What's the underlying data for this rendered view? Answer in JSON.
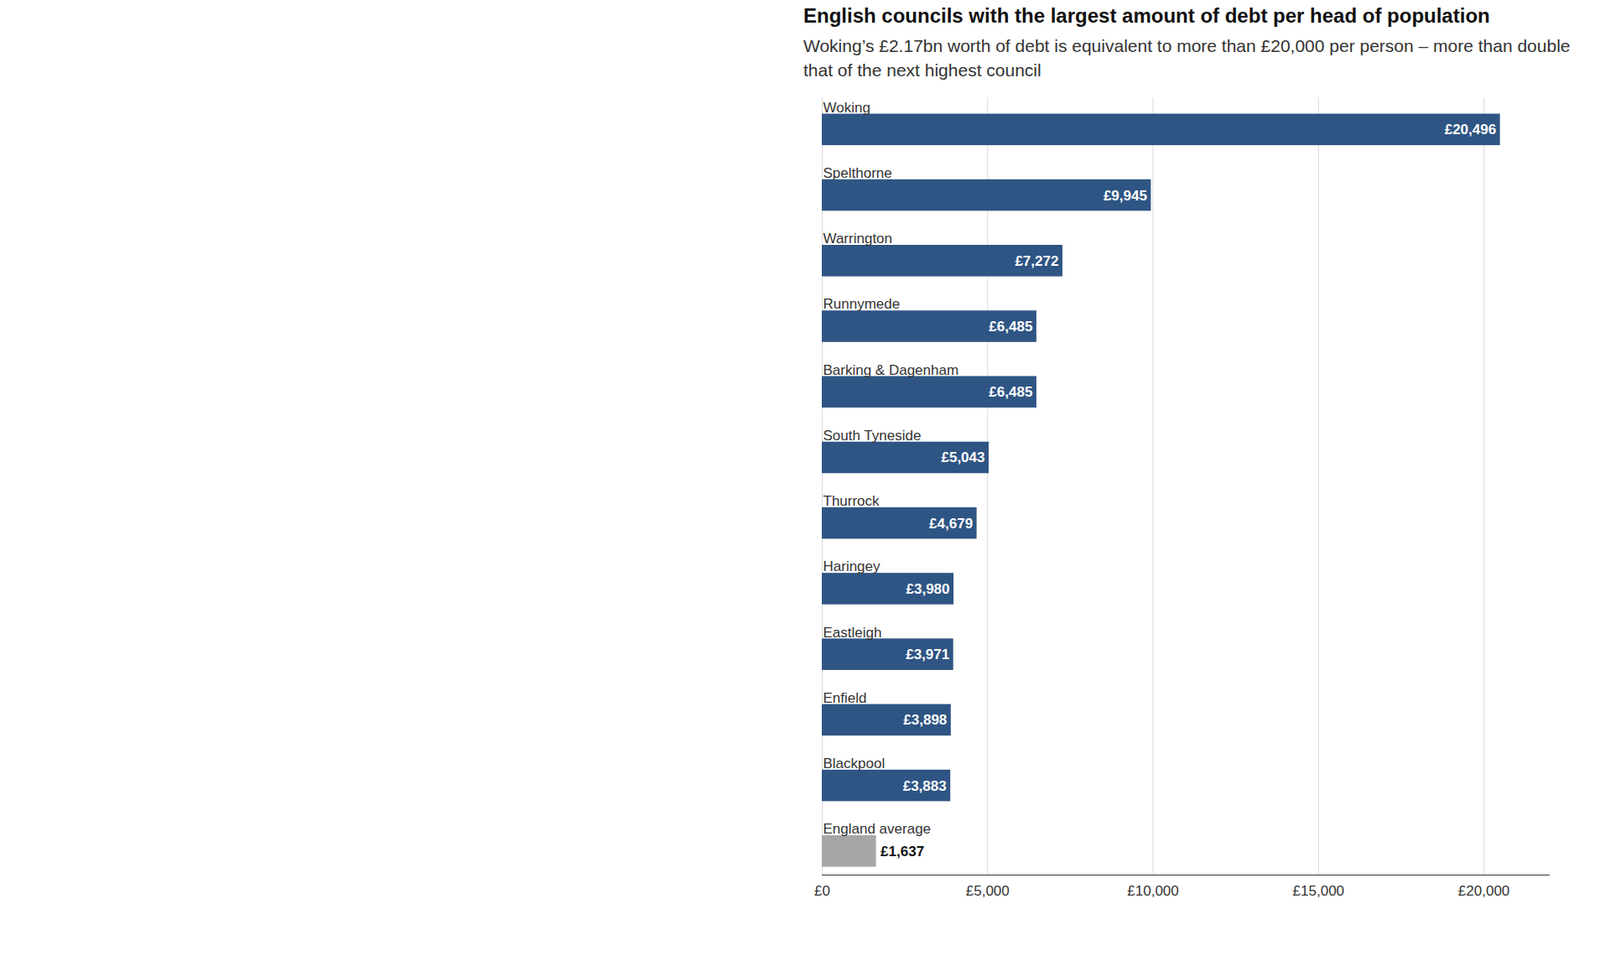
{
  "chart_data": {
    "type": "bar",
    "title": "English councils with the largest amount of debt per head of population",
    "subtitle": "Woking’s £2.17bn worth of debt is equivalent to more than £20,000 per person – more than double that of the next highest council",
    "orientation": "horizontal",
    "categories": [
      "Woking",
      "Spelthorne",
      "Warrington",
      "Runnymede",
      "Barking & Dagenham",
      "South Tyneside",
      "Thurrock",
      "Haringey",
      "Eastleigh",
      "Enfield",
      "Blackpool",
      "England average"
    ],
    "values": [
      20496,
      9945,
      7272,
      6485,
      6485,
      5043,
      4679,
      3980,
      3971,
      3898,
      3883,
      1637
    ],
    "value_labels": [
      "£20,496",
      "£9,945",
      "£7,272",
      "£6,485",
      "£6,485",
      "£5,043",
      "£4,679",
      "£3,980",
      "£3,971",
      "£3,898",
      "£3,883",
      "£1,637"
    ],
    "colors": [
      "#2e5584",
      "#2e5584",
      "#2e5584",
      "#2e5584",
      "#2e5584",
      "#2e5584",
      "#2e5584",
      "#2e5584",
      "#2e5584",
      "#2e5584",
      "#2e5584",
      "#a6a6a6"
    ],
    "data_labels": true,
    "grid": true,
    "xlim": [
      0,
      22000
    ],
    "xticks": [
      {
        "value": 0,
        "label": "£0"
      },
      {
        "value": 5000,
        "label": "£5,000"
      },
      {
        "value": 10000,
        "label": "£10,000"
      },
      {
        "value": 15000,
        "label": "£15,000"
      },
      {
        "value": 20000,
        "label": "£20,000"
      }
    ]
  }
}
